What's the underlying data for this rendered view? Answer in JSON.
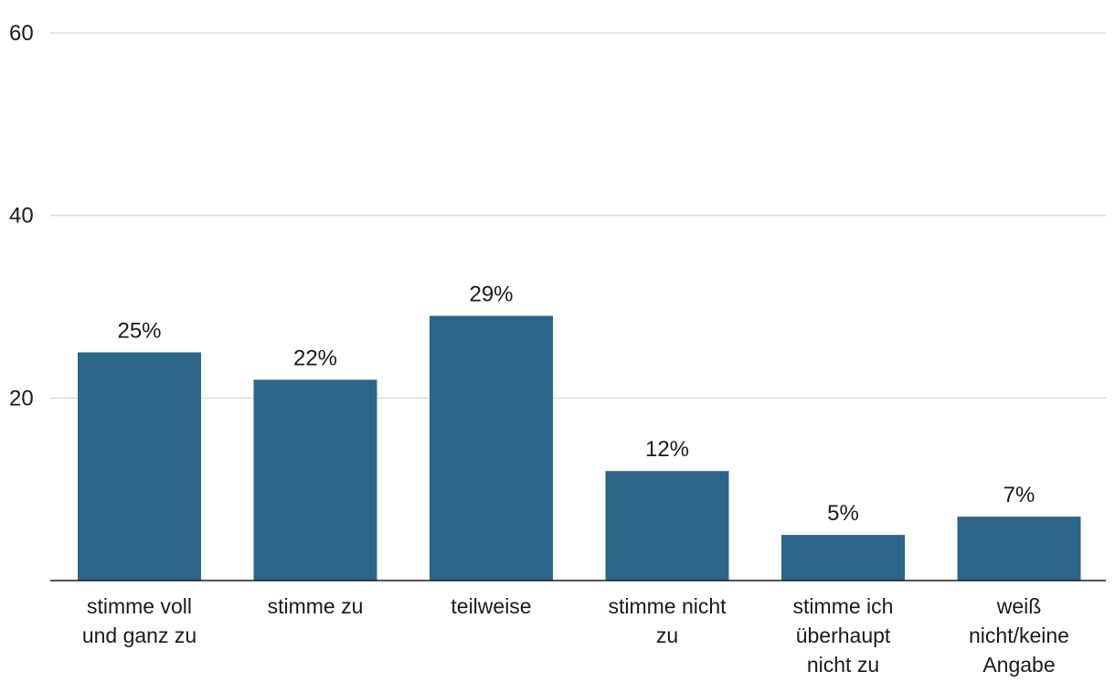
{
  "chart_data": {
    "type": "bar",
    "categories": [
      [
        "stimme voll",
        "und ganz zu"
      ],
      [
        "stimme zu"
      ],
      [
        "teilweise"
      ],
      [
        "stimme nicht",
        "zu"
      ],
      [
        "stimme ich",
        "überhaupt",
        "nicht zu"
      ],
      [
        "weiß",
        "nicht/keine",
        "Angabe"
      ]
    ],
    "values": [
      25,
      22,
      29,
      12,
      5,
      7
    ],
    "value_labels": [
      "25%",
      "22%",
      "29%",
      "12%",
      "5%",
      "7%"
    ],
    "yticks": [
      20,
      40,
      60
    ],
    "ytick_labels": [
      "20",
      "40",
      "60"
    ],
    "ylim": [
      0,
      60
    ],
    "grid": true,
    "legend": "none",
    "title": "",
    "xlabel": "",
    "ylabel": "",
    "colors": {
      "bar": "#2d6588",
      "grid": "#dcdcdc",
      "axis": "#1a1a1a",
      "text": "#1a1a1a"
    }
  }
}
